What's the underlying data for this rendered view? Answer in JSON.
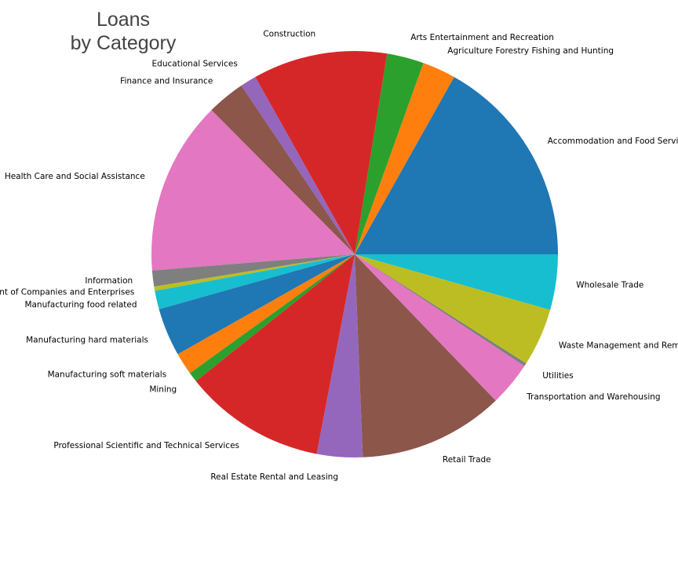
{
  "chart_data": {
    "type": "pie",
    "title": [
      "Loans",
      "by Category"
    ],
    "categories": [
      "Accommodation and Food Services",
      "Agriculture Forestry Fishing and Hunting",
      "Arts Entertainment and Recreation",
      "Construction",
      "Educational Services",
      "Finance and Insurance",
      "Health Care and Social Assistance",
      "Information",
      "Management of Companies and Enterprises",
      "Manufacturing food related",
      "Manufacturing hard materials",
      "Manufacturing soft materials",
      "Mining",
      "Professional Scientific and Technical Services",
      "Real Estate Rental and Leasing",
      "Retail Trade",
      "Transportation and Warehousing",
      "Utilities",
      "Waste Management and Remediation Services",
      "Wholesale Trade"
    ],
    "values": [
      17.2,
      2.7,
      3.0,
      10.9,
      1.3,
      3.1,
      14.1,
      1.3,
      0.35,
      1.5,
      3.9,
      1.8,
      0.8,
      11.5,
      3.7,
      11.8,
      3.6,
      0.25,
      4.7,
      4.5
    ],
    "colors": [
      "#1f77b4",
      "#ff7f0e",
      "#2ca02c",
      "#d62728",
      "#9467bd",
      "#8c564b",
      "#e377c2",
      "#7f7f7f",
      "#bcbd22",
      "#17becf",
      "#1f77b4",
      "#ff7f0e",
      "#2ca02c",
      "#d62728",
      "#9467bd",
      "#8c564b",
      "#e377c2",
      "#7f7f7f",
      "#bcbd22",
      "#17becf"
    ],
    "start_angle_deg": 0,
    "direction": "counterclockwise",
    "legend": "none"
  }
}
